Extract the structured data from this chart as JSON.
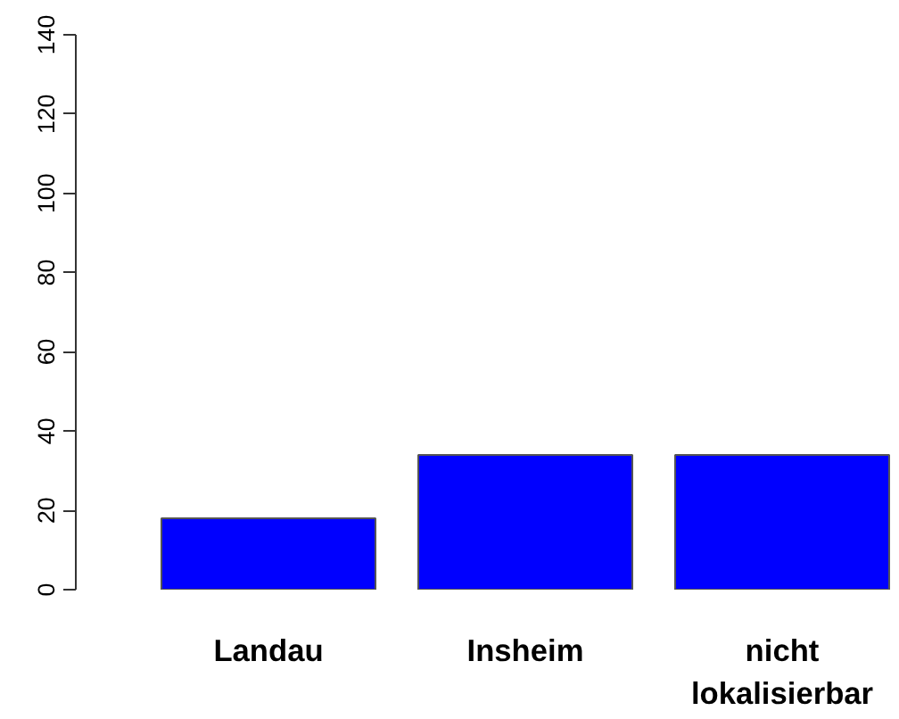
{
  "chart_data": {
    "type": "bar",
    "categories": [
      "Landau",
      "Insheim",
      "nicht\nlokalisierbar"
    ],
    "values": [
      18,
      34,
      34
    ],
    "color": "#0000ff",
    "ylim": [
      0,
      140
    ],
    "yticks": [
      0,
      20,
      40,
      60,
      80,
      100,
      120,
      140
    ],
    "grid": false
  }
}
